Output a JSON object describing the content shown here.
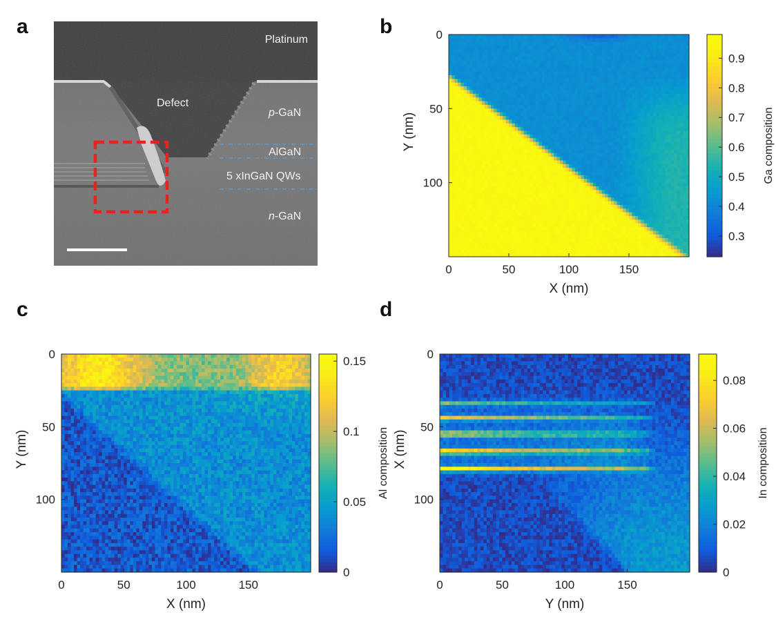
{
  "panels": {
    "a": "a",
    "b": "b",
    "c": "c",
    "d": "d"
  },
  "sem": {
    "labels": {
      "platinum": "Platinum",
      "defect": "Defect",
      "pgan_italic": "p",
      "pgan_rest": "-GaN",
      "algan": "AlGaN",
      "qws": "5 xInGaN QWs",
      "ngan_italic": "n",
      "ngan_rest": "-GaN"
    }
  },
  "chart_data": [
    {
      "id": "b",
      "type": "heatmap",
      "title": "",
      "xlabel": "X (nm)",
      "ylabel": "Y (nm)",
      "xlim": [
        0,
        200
      ],
      "ylim": [
        0,
        150
      ],
      "xticks": [
        0,
        50,
        100,
        150
      ],
      "yticks": [
        0,
        50,
        100
      ],
      "colorbar": {
        "label": "Ga composition",
        "min": 0.23,
        "max": 0.98,
        "ticks": [
          0.3,
          0.4,
          0.5,
          0.6,
          0.7,
          0.8,
          0.9
        ]
      },
      "colormap": "parula"
    },
    {
      "id": "c",
      "type": "heatmap",
      "title": "",
      "xlabel": "X (nm)",
      "ylabel": "Y (nm)",
      "xlim": [
        0,
        200
      ],
      "ylim": [
        0,
        150
      ],
      "xticks": [
        0,
        50,
        100,
        150
      ],
      "yticks": [
        0,
        50,
        100
      ],
      "colorbar": {
        "label": "Al composition",
        "min": 0,
        "max": 0.155,
        "ticks": [
          0,
          0.05,
          0.1,
          0.15
        ]
      },
      "colormap": "parula"
    },
    {
      "id": "d",
      "type": "heatmap",
      "title": "",
      "xlabel": "Y (nm)",
      "ylabel": "X (nm)",
      "xlim": [
        0,
        200
      ],
      "ylim": [
        0,
        150
      ],
      "xticks": [
        0,
        50,
        100,
        150
      ],
      "yticks": [
        0,
        50,
        100
      ],
      "colorbar": {
        "label": "In composition",
        "min": 0,
        "max": 0.091,
        "ticks": [
          0,
          0.02,
          0.04,
          0.06,
          0.08
        ]
      },
      "colormap": "parula"
    }
  ]
}
